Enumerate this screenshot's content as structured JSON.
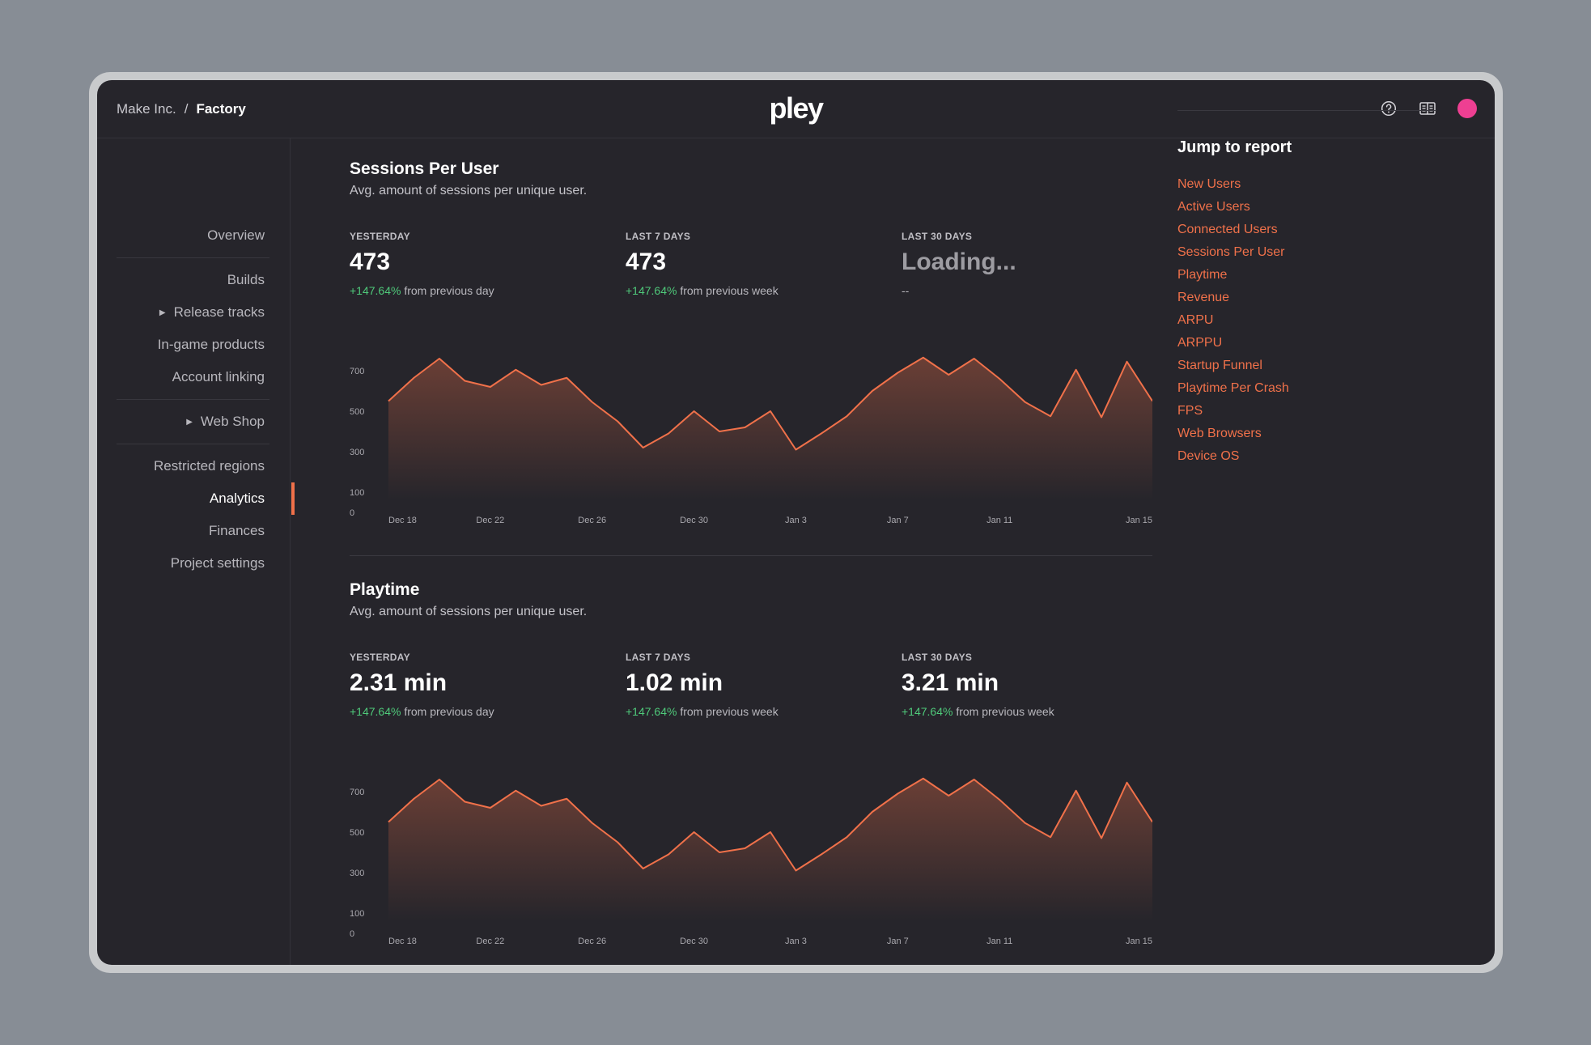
{
  "breadcrumb": {
    "org": "Make Inc.",
    "separator": "/",
    "project": "Factory"
  },
  "logo": "pley",
  "header_icons": [
    "help-icon",
    "book-icon",
    "avatar"
  ],
  "colors": {
    "accent": "#f0714a",
    "positive": "#4fc97a",
    "avatar": "#ee3f92",
    "background": "#26252b"
  },
  "sidebar": {
    "items": [
      {
        "label": "Overview"
      },
      {
        "label": "Builds"
      },
      {
        "label": "Release tracks",
        "expandable": true
      },
      {
        "label": "In-game products"
      },
      {
        "label": "Account linking"
      },
      {
        "label": "Web Shop",
        "expandable": true
      },
      {
        "label": "Restricted regions"
      },
      {
        "label": "Analytics",
        "active": true
      },
      {
        "label": "Finances"
      },
      {
        "label": "Project settings"
      }
    ]
  },
  "sections": [
    {
      "title": "Sessions Per User",
      "subtitle": "Avg. amount of sessions per unique user.",
      "stats": [
        {
          "label": "YESTERDAY",
          "value": "473",
          "change": "+147.64%",
          "suffix": "from previous day"
        },
        {
          "label": "LAST 7 DAYS",
          "value": "473",
          "change": "+147.64%",
          "suffix": "from previous week"
        },
        {
          "label": "LAST 30 DAYS",
          "value": "Loading...",
          "change": "",
          "suffix": "--"
        }
      ]
    },
    {
      "title": "Playtime",
      "subtitle": "Avg. amount of sessions per unique user.",
      "stats": [
        {
          "label": "YESTERDAY",
          "value": "2.31 min",
          "change": "+147.64%",
          "suffix": "from previous day"
        },
        {
          "label": "LAST 7 DAYS",
          "value": "1.02 min",
          "change": "+147.64%",
          "suffix": "from previous week"
        },
        {
          "label": "LAST 30 DAYS",
          "value": "3.21 min",
          "change": "+147.64%",
          "suffix": "from previous week"
        }
      ]
    }
  ],
  "chart_data": [
    {
      "type": "area",
      "ytick_labels": [
        "0",
        "100",
        "300",
        "500",
        "700"
      ],
      "xtick_labels": [
        "Dec 18",
        "Dec 22",
        "Dec 26",
        "Dec 30",
        "Jan 3",
        "Jan 7",
        "Jan 11",
        "Jan 15"
      ],
      "ylim": [
        0,
        800
      ],
      "grid": false,
      "values": [
        550,
        665,
        760,
        650,
        620,
        705,
        630,
        665,
        545,
        450,
        320,
        390,
        500,
        400,
        420,
        500,
        310,
        390,
        475,
        600,
        690,
        765,
        680,
        760,
        660,
        545,
        475,
        705,
        470,
        745,
        550
      ]
    },
    {
      "type": "area",
      "ytick_labels": [
        "0",
        "100",
        "300",
        "500",
        "700"
      ],
      "xtick_labels": [
        "Dec 18",
        "Dec 22",
        "Dec 26",
        "Dec 30",
        "Jan 3",
        "Jan 7",
        "Jan 11",
        "Jan 15"
      ],
      "ylim": [
        0,
        800
      ],
      "grid": false,
      "values": [
        550,
        665,
        760,
        650,
        620,
        705,
        630,
        665,
        545,
        450,
        320,
        390,
        500,
        400,
        420,
        500,
        310,
        390,
        475,
        600,
        690,
        765,
        680,
        760,
        660,
        545,
        475,
        705,
        470,
        745,
        550
      ]
    }
  ],
  "jump": {
    "title": "Jump to report",
    "links": [
      "New Users",
      "Active Users",
      "Connected Users",
      "Sessions Per User",
      "Playtime",
      "Revenue",
      "ARPU",
      "ARPPU",
      "Startup Funnel",
      "Playtime Per Crash",
      "FPS",
      "Web Browsers",
      "Device OS"
    ]
  }
}
